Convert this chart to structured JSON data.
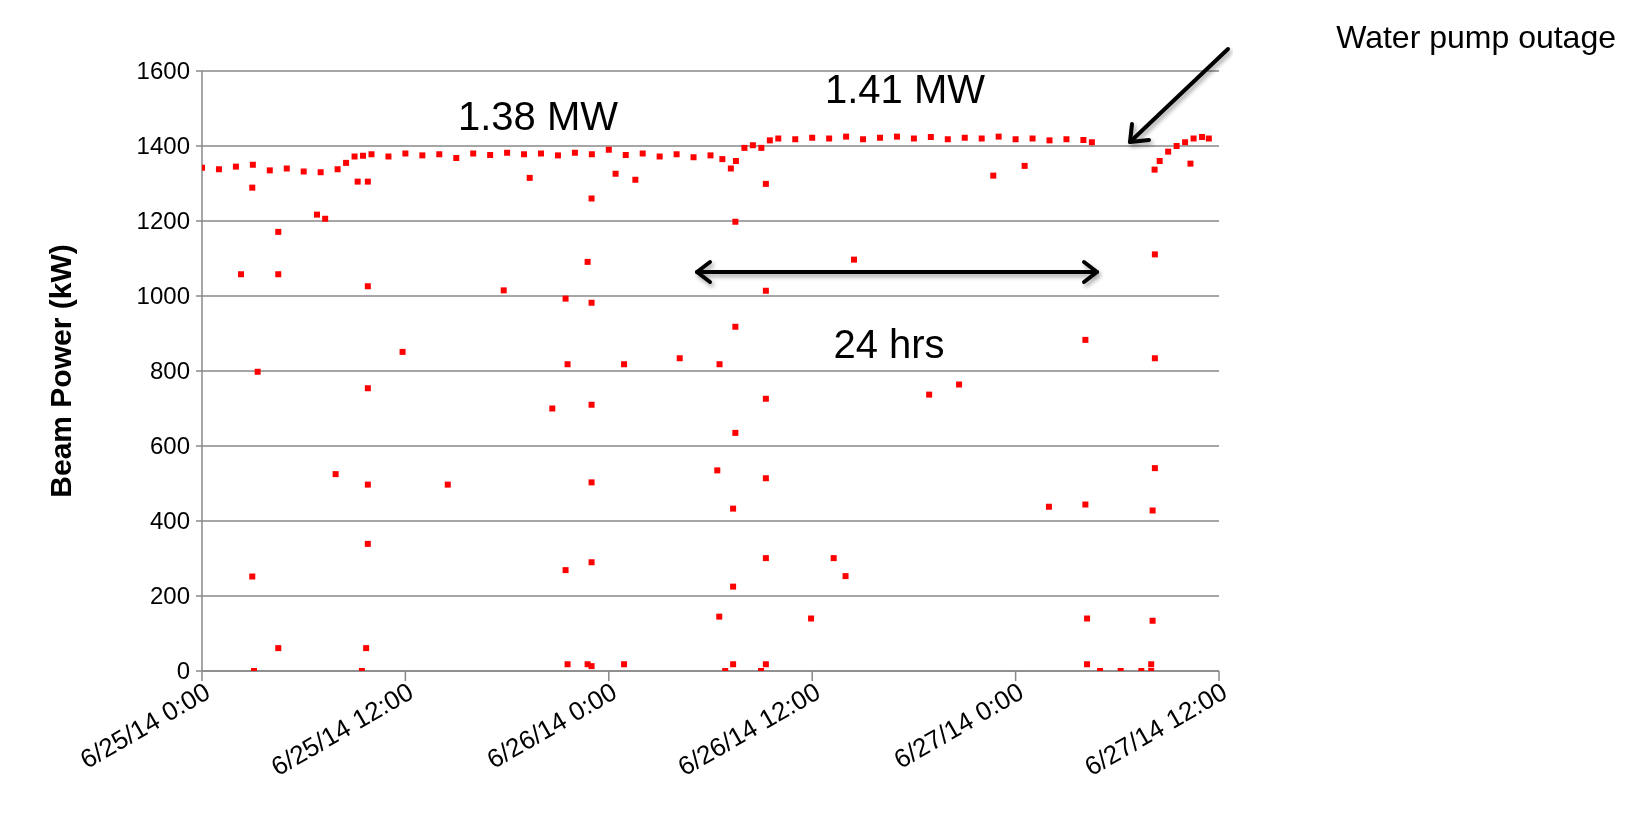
{
  "chart_data": {
    "type": "scatter",
    "ylabel": "Beam Power (kW)",
    "xlim": [
      "--06-25T00:00",
      "--06-27T12:00"
    ],
    "xticks": [
      {
        "value": "--06-25T00:00",
        "label": "6/25/14 0:00"
      },
      {
        "value": "--06-25T12:00",
        "label": "6/25/14 12:00"
      },
      {
        "value": "--06-26T00:00",
        "label": "6/26/14 0:00"
      },
      {
        "value": "--06-26T12:00",
        "label": "6/26/14 12:00"
      },
      {
        "value": "--06-27T00:00",
        "label": "6/27/14 0:00"
      },
      {
        "value": "--06-27T12:00",
        "label": "6/27/14 12:00"
      }
    ],
    "ylim": [
      0,
      1600
    ],
    "yticks": [
      0,
      200,
      400,
      600,
      800,
      1000,
      1200,
      1400,
      1600
    ],
    "grid": "y",
    "marker": "square",
    "annotations": [
      "1.38 MW",
      "1.41 MW",
      "24 hrs",
      "Water pump outage"
    ],
    "series": [
      {
        "color": "#ff0000",
        "x": [
          "--06-25T00:00",
          "--06-25T01:00",
          "--06-25T02:00",
          "--06-25T03:00",
          "--06-25T04:00",
          "--06-25T05:00",
          "--06-25T06:00",
          "--06-25T07:00",
          "--06-25T08:00",
          "--06-25T08:30",
          "--06-25T09:00",
          "--06-25T09:30",
          "--06-25T10:00",
          "--06-25T11:00",
          "--06-25T12:00",
          "--06-25T13:00",
          "--06-25T14:00",
          "--06-25T15:00",
          "--06-25T16:00",
          "--06-25T17:00",
          "--06-25T18:00",
          "--06-25T19:00",
          "--06-25T20:00",
          "--06-25T21:00",
          "--06-25T22:00",
          "--06-25T23:00",
          "--06-26T00:00",
          "--06-26T01:00",
          "--06-26T02:00",
          "--06-26T03:00",
          "--06-26T04:00",
          "--06-26T05:00",
          "--06-26T06:00",
          "--06-26T06:42",
          "--06-26T07:12",
          "--06-26T07:30",
          "--06-26T08:00",
          "--06-26T08:30",
          "--06-26T09:00",
          "--06-26T09:30",
          "--06-26T10:00",
          "--06-26T11:00",
          "--06-26T12:00",
          "--06-26T13:00",
          "--06-26T14:00",
          "--06-26T15:00",
          "--06-26T16:00",
          "--06-26T17:00",
          "--06-26T18:00",
          "--06-26T19:00",
          "--06-26T20:00",
          "--06-26T21:00",
          "--06-26T22:00",
          "--06-26T23:00",
          "--06-27T00:00",
          "--06-27T01:00",
          "--06-27T02:00",
          "--06-27T03:00",
          "--06-27T04:00",
          "--06-27T04:30",
          "--06-27T08:12",
          "--06-27T08:30",
          "--06-27T09:00",
          "--06-27T09:30",
          "--06-27T10:00",
          "--06-27T10:30",
          "--06-27T11:00",
          "--06-27T11:24",
          "--06-25T02:58",
          "--06-25T06:47",
          "--06-25T07:16",
          "--06-25T04:30",
          "--06-25T02:18",
          "--06-25T04:30",
          "--06-25T09:47",
          "--06-25T17:48",
          "--06-25T11:50",
          "--06-25T03:17",
          "--06-25T09:47",
          "--06-25T20:40",
          "--06-25T07:53",
          "--06-25T09:47",
          "--06-25T14:30",
          "--06-25T09:47",
          "--06-25T02:58",
          "--06-25T04:30",
          "--06-25T09:41",
          "--06-25T03:04",
          "--06-25T09:26",
          "--06-25T19:20",
          "--06-25T09:11",
          "--06-25T09:47",
          "--06-26T00:24",
          "--06-26T01:34",
          "--06-25T22:59",
          "--06-26T09:16",
          "--06-26T07:28",
          "--06-25T22:45",
          "--06-26T14:28",
          "--06-26T09:16",
          "--06-25T21:27",
          "--06-25T22:59",
          "--06-26T07:28",
          "--06-25T21:34",
          "--06-26T00:54",
          "--06-26T04:11",
          "--06-26T06:32",
          "--06-25T22:59",
          "--06-26T09:16",
          "--06-26T07:28",
          "--06-26T06:24",
          "--06-25T22:59",
          "--06-26T09:16",
          "--06-26T07:20",
          "--06-25T21:27",
          "--06-25T22:59",
          "--06-26T09:16",
          "--06-26T13:16",
          "--06-26T13:58",
          "--06-26T07:20",
          "--06-26T06:31",
          "--06-26T11:56",
          "--06-25T21:34",
          "--06-25T22:45",
          "--06-25T22:59",
          "--06-26T00:54",
          "--06-26T07:20",
          "--06-26T09:16",
          "--06-26T06:52",
          "--06-26T08:59",
          "--06-26T22:41",
          "--06-27T00:32",
          "--06-27T10:19",
          "--06-27T08:13",
          "--06-27T04:07",
          "--06-27T08:13",
          "--06-26T18:54",
          "--06-26T20:40",
          "--06-27T08:13",
          "--06-27T01:58",
          "--06-27T04:07",
          "--06-27T08:05",
          "--06-27T04:13",
          "--06-27T08:05",
          "--06-27T04:13",
          "--06-27T08:00",
          "--06-27T04:59",
          "--06-27T06:12",
          "--06-27T07:25",
          "--06-27T08:00"
        ],
        "values": [
          1342,
          1338,
          1345,
          1350,
          1335,
          1340,
          1332,
          1330,
          1338,
          1355,
          1372,
          1374,
          1378,
          1372,
          1380,
          1375,
          1378,
          1368,
          1380,
          1376,
          1382,
          1378,
          1380,
          1375,
          1382,
          1378,
          1390,
          1376,
          1380,
          1372,
          1378,
          1370,
          1375,
          1365,
          1340,
          1360,
          1395,
          1402,
          1395,
          1415,
          1420,
          1418,
          1422,
          1420,
          1425,
          1418,
          1422,
          1425,
          1420,
          1424,
          1418,
          1422,
          1420,
          1425,
          1418,
          1420,
          1415,
          1418,
          1416,
          1410,
          1337,
          1360,
          1385,
          1400,
          1410,
          1420,
          1424,
          1420,
          1289,
          1217,
          1206,
          1171,
          1058,
          1058,
          1026,
          1015,
          851,
          798,
          754,
          700,
          525,
          497,
          497,
          339,
          252,
          61,
          61,
          0,
          0,
          1315,
          1305,
          1305,
          1326,
          1310,
          1260,
          1299,
          1198,
          1091,
          1097,
          1014,
          993,
          982,
          918,
          818,
          818,
          834,
          818,
          710,
          726,
          635,
          535,
          503,
          514,
          433,
          269,
          290,
          301,
          301,
          253,
          225,
          145,
          140,
          18,
          18,
          13,
          18,
          18,
          18,
          0,
          0,
          1321,
          1347,
          1353,
          1111,
          883,
          834,
          737,
          764,
          541,
          438,
          444,
          428,
          140,
          134,
          18,
          18,
          0,
          0,
          0,
          0
        ]
      }
    ]
  }
}
